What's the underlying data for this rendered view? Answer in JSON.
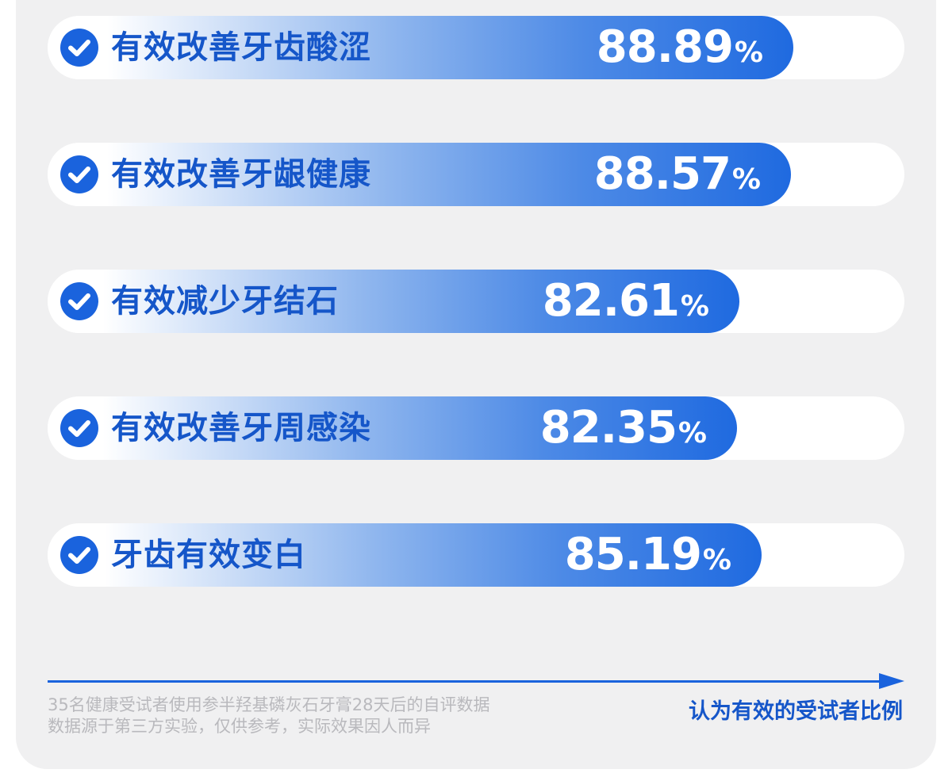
{
  "chart_data": {
    "type": "bar",
    "orientation": "horizontal",
    "categories": [
      "有效改善牙齿酸涩",
      "有效改善牙龈健康",
      "有效减少牙结石",
      "有效改善牙周感染",
      "牙齿有效变白"
    ],
    "values": [
      88.89,
      88.57,
      82.61,
      82.35,
      85.19
    ],
    "value_labels": [
      "88.89",
      "88.57",
      "82.61",
      "82.35",
      "85.19"
    ],
    "unit": "%",
    "xlabel": "认为有效的受试者比例",
    "ylabel": "",
    "xlim": [
      0,
      100
    ],
    "grid": false,
    "legend": false
  },
  "icon": "check-circle-icon",
  "colors": {
    "accent": "#1a63dd",
    "label": "#1556c9",
    "track": "#ffffff",
    "card": "#f0f0f1",
    "note": "#b9b9bd"
  },
  "footnote": {
    "line1": "35名健康受试者使用参半羟基磷灰石牙膏28天后的自评数据",
    "line2": "数据源于第三方实验，仅供参考，实际效果因人而异"
  }
}
